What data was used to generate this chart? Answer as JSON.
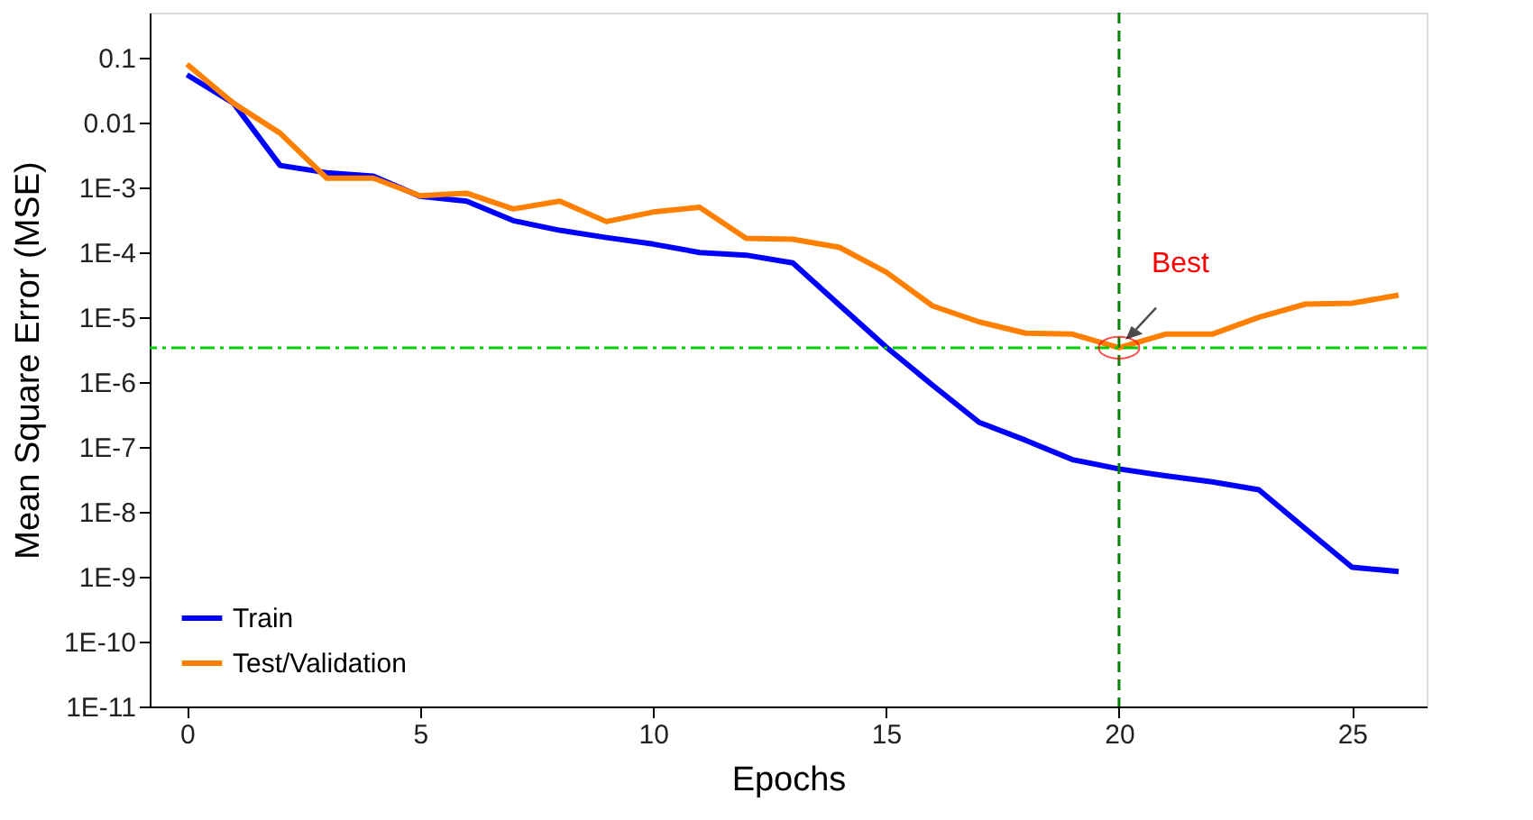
{
  "chart_data": {
    "type": "line",
    "xlabel": "Epochs",
    "ylabel": "Mean Square Error (MSE)",
    "x": [
      0,
      1,
      2,
      3,
      4,
      5,
      6,
      7,
      8,
      9,
      10,
      11,
      12,
      13,
      14,
      15,
      16,
      17,
      18,
      19,
      20,
      21,
      22,
      23,
      24,
      25,
      26
    ],
    "series": [
      {
        "name": "Train",
        "color": "#0000ff",
        "values": [
          0.055,
          0.02,
          0.0022,
          0.0017,
          0.0015,
          0.00074,
          0.00062,
          0.00031,
          0.00022,
          0.00017,
          0.000135,
          0.0001,
          9.1e-05,
          6.9e-05,
          1.55e-05,
          3.5e-06,
          9e-07,
          2.4e-07,
          1.27e-07,
          6.4e-08,
          4.6e-08,
          3.6e-08,
          2.9e-08,
          2.2e-08,
          5.5e-09,
          1.4e-09,
          1.2e-09
        ]
      },
      {
        "name": "Test/Validation",
        "color": "#ff8000",
        "values": [
          0.08,
          0.02,
          0.0069,
          0.0014,
          0.0014,
          0.00075,
          0.00082,
          0.00047,
          0.00062,
          0.0003,
          0.00042,
          0.0005,
          0.000165,
          0.00016,
          0.00012,
          5e-05,
          1.5e-05,
          8.5e-06,
          5.7e-06,
          5.5e-06,
          3.4e-06,
          5.5e-06,
          5.5e-06,
          1e-05,
          1.6e-05,
          1.65e-05,
          2.2e-05
        ]
      }
    ],
    "log": "y",
    "xlim": [
      -0.8,
      26.6
    ],
    "ylim": [
      1e-11,
      0.5
    ],
    "xticks": [
      0,
      5,
      10,
      15,
      20,
      25
    ],
    "yticks": [
      0.1,
      0.01,
      {
        "value": 0.001,
        "label": "1E-3"
      },
      {
        "value": 0.0001,
        "label": "1E-4"
      },
      {
        "value": 1e-05,
        "label": "1E-5"
      },
      {
        "value": 1e-06,
        "label": "1E-6"
      },
      {
        "value": 1e-07,
        "label": "1E-7"
      },
      {
        "value": 1e-08,
        "label": "1E-8"
      },
      {
        "value": 1e-09,
        "label": "1E-9"
      },
      {
        "value": 1e-10,
        "label": "1E-10"
      },
      {
        "value": 1e-11,
        "label": "1E-11"
      }
    ],
    "ref_lines": [
      {
        "axis": "x",
        "value": 20,
        "color": "#008000",
        "line_style": "dashed"
      },
      {
        "axis": "y",
        "value": 3.4e-06,
        "color": "#00cc00",
        "line_style": "dashdot"
      }
    ],
    "annotations": [
      {
        "text": "Best",
        "x": 20,
        "y": 3.4e-06
      }
    ],
    "grid": false,
    "legend": "bottom left",
    "marker": "none",
    "line_style": "solid"
  }
}
